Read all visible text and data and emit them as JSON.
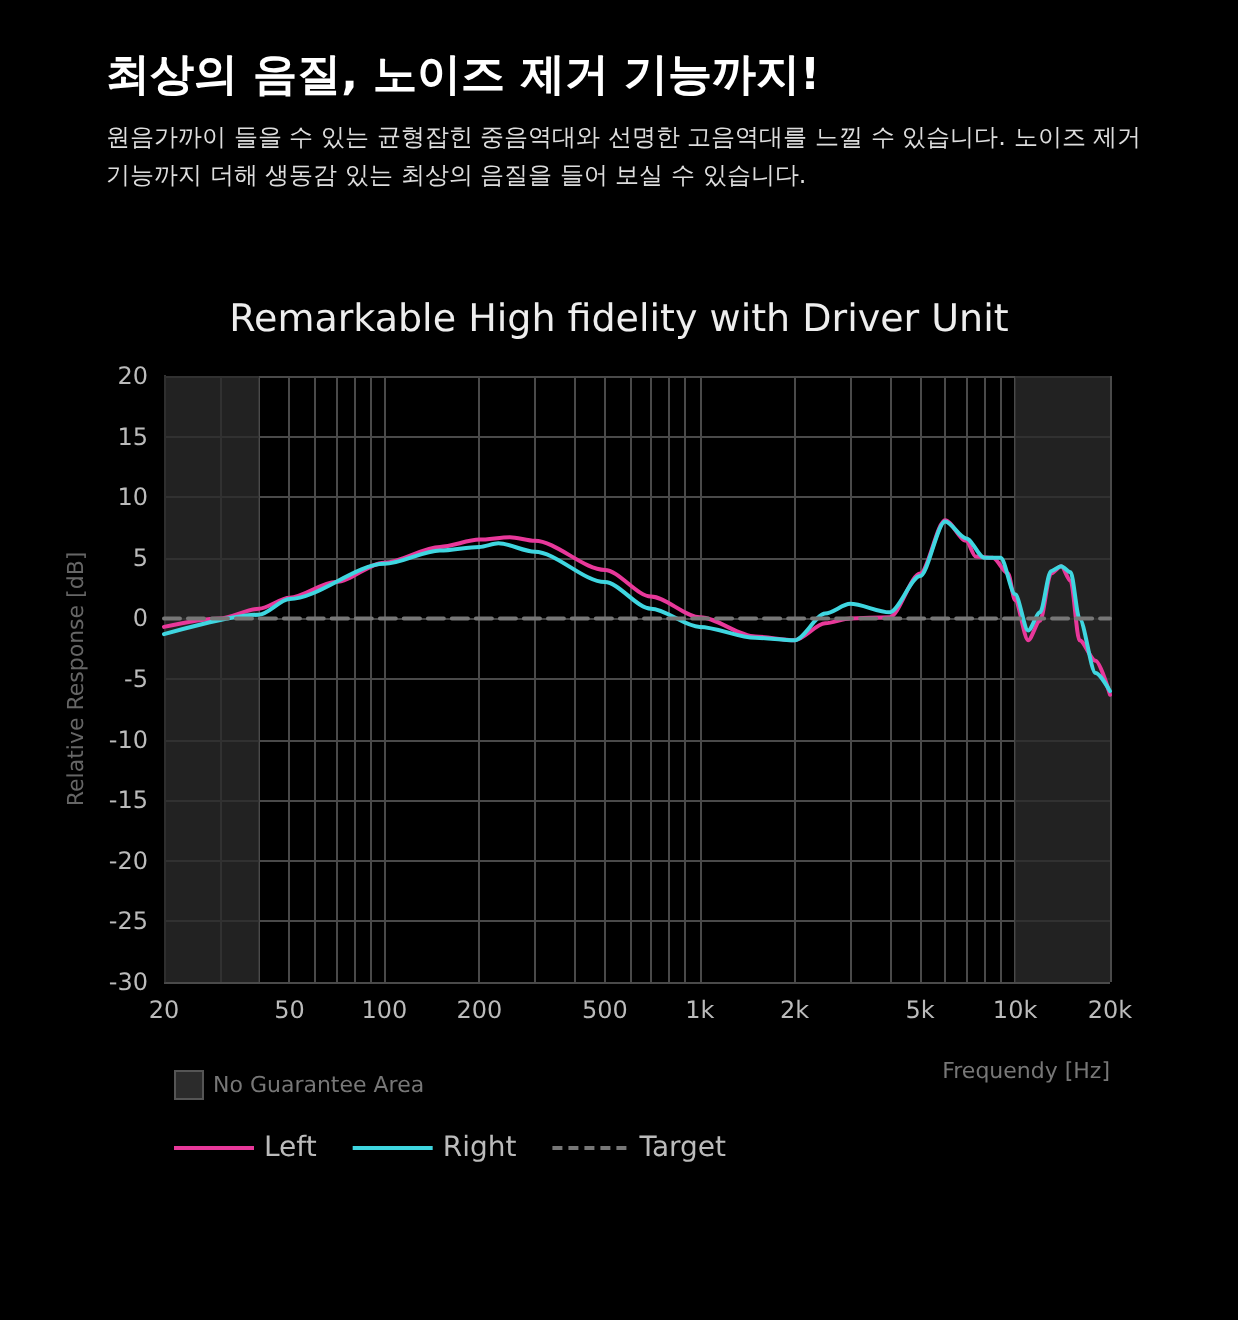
{
  "chart_data": {
    "type": "line",
    "title": "최상의 음질, 노이즈 제거 기능까지!",
    "subtitle": "원음가까이 들을 수 있는 균형잡힌 중음역대와 선명한 고음역대를 느낄 수 있습니다. 노이즈 제거\n기능까지 더해 생동감 있는 최상의 음질을 들어 보실 수 있습니다.",
    "annotations": [
      "Remarkable High fidelity with Driver Unit"
    ],
    "xlabel": "Frequendy [Hz]",
    "ylabel": "Relative Response [dB]",
    "log": "x",
    "grid": true,
    "legend": "bottom left",
    "line_style": "solid",
    "marker": "none",
    "xlim": [
      20,
      20000
    ],
    "xticks": [
      20,
      {
        "value": 30,
        "label": null
      },
      {
        "value": 40,
        "label": null
      },
      50,
      {
        "value": 60,
        "label": null
      },
      {
        "value": 70,
        "label": null
      },
      {
        "value": 80,
        "label": null
      },
      {
        "value": 90,
        "label": null
      },
      100,
      200,
      {
        "value": 300,
        "label": null
      },
      {
        "value": 400,
        "label": null
      },
      500,
      {
        "value": 600,
        "label": null
      },
      {
        "value": 700,
        "label": null
      },
      {
        "value": 800,
        "label": null
      },
      {
        "value": 900,
        "label": null
      },
      {
        "value": 1000,
        "label": "1k"
      },
      {
        "value": 2000,
        "label": "2k"
      },
      {
        "value": 3000,
        "label": null
      },
      {
        "value": 4000,
        "label": null
      },
      {
        "value": 5000,
        "label": "5k"
      },
      {
        "value": 6000,
        "label": null
      },
      {
        "value": 7000,
        "label": null
      },
      {
        "value": 8000,
        "label": null
      },
      {
        "value": 9000,
        "label": null
      },
      {
        "value": 10000,
        "label": "10k"
      },
      {
        "value": 20000,
        "label": "20k"
      }
    ],
    "ylim": [
      -30,
      20
    ],
    "yticks": [
      -30,
      -25,
      -20,
      -15,
      -10,
      -5,
      0,
      5,
      10,
      15,
      20
    ],
    "bands": [
      {
        "axis": "x",
        "from": 20,
        "to": 40,
        "label": "No Guarantee Area",
        "color": "#2b2b2b"
      },
      {
        "axis": "x",
        "from": 10000,
        "to": 20000,
        "color": "#2b2b2b"
      }
    ],
    "series": [
      {
        "name": "Left",
        "color": "#e8389a",
        "x": [
          20,
          30,
          40,
          50,
          70,
          100,
          150,
          200,
          250,
          300,
          500,
          700,
          1000,
          1500,
          2000,
          2500,
          3000,
          4000,
          5000,
          6000,
          7000,
          7500,
          8500,
          9500,
          10000,
          11000,
          12000,
          13000,
          14000,
          15000,
          16000,
          18000,
          20000
        ],
        "values": [
          -0.7,
          0,
          0.8,
          1.7,
          3,
          4.6,
          5.9,
          6.5,
          6.7,
          6.4,
          4,
          1.8,
          0.1,
          -1.5,
          -1.8,
          -0.4,
          0,
          0.1,
          3.7,
          8.1,
          6.4,
          5.1,
          5,
          3.7,
          1.5,
          -1.8,
          -0.2,
          3.7,
          4.3,
          3.1,
          -1.8,
          -3.5,
          -6.3
        ]
      },
      {
        "name": "Right",
        "color": "#3fd6e0",
        "x": [
          20,
          40,
          50,
          100,
          150,
          200,
          230,
          300,
          500,
          700,
          1000,
          1500,
          2000,
          2500,
          3000,
          4000,
          5000,
          6000,
          7000,
          8000,
          9000,
          10000,
          11000,
          12000,
          13000,
          14000,
          15000,
          16000,
          18000,
          20000
        ],
        "values": [
          -1.3,
          0.3,
          1.6,
          4.5,
          5.6,
          5.9,
          6.2,
          5.5,
          3,
          0.8,
          -0.7,
          -1.6,
          -1.8,
          0.4,
          1.2,
          0.5,
          3.5,
          8,
          6.6,
          5,
          5,
          2,
          -1,
          0.5,
          3.9,
          4.3,
          3.8,
          0,
          -4.5,
          -6
        ]
      },
      {
        "name": "Target",
        "color": "#777777",
        "line_style": "dashed",
        "x": [
          20,
          20000
        ],
        "values": [
          0,
          0
        ]
      }
    ]
  }
}
